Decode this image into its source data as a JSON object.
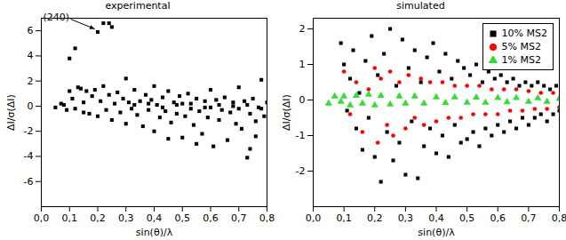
{
  "chart_data": [
    {
      "type": "scatter",
      "title": "experimental",
      "x_label": "sin(θ)/λ",
      "y_label": "ΔI/σ(ΔI)",
      "xlim": [
        0,
        0.8
      ],
      "xticks": [
        {
          "value": 0,
          "label": "0,0"
        },
        {
          "value": 0.1,
          "label": "0,1"
        },
        {
          "value": 0.2,
          "label": "0,2"
        },
        {
          "value": 0.3,
          "label": "0,3"
        },
        {
          "value": 0.4,
          "label": "0,4"
        },
        {
          "value": 0.5,
          "label": "0,5"
        },
        {
          "value": 0.6,
          "label": "0,6"
        },
        {
          "value": 0.7,
          "label": "0,7"
        },
        {
          "value": 0.8,
          "label": "0,8"
        }
      ],
      "ylim": [
        -8,
        7
      ],
      "yticks": [
        -6,
        -4,
        -2,
        0,
        2,
        4,
        6
      ],
      "series": [
        {
          "color": "#000000",
          "marker": "square",
          "x": [
            0.05,
            0.07,
            0.08,
            0.09,
            0.1,
            0.12,
            0.1,
            0.11,
            0.12,
            0.13,
            0.14,
            0.15,
            0.15,
            0.16,
            0.17,
            0.18,
            0.19,
            0.2,
            0.22,
            0.24,
            0.25,
            0.2,
            0.21,
            0.22,
            0.23,
            0.24,
            0.25,
            0.26,
            0.27,
            0.28,
            0.29,
            0.3,
            0.3,
            0.31,
            0.32,
            0.33,
            0.34,
            0.35,
            0.36,
            0.37,
            0.38,
            0.39,
            0.4,
            0.4,
            0.41,
            0.42,
            0.43,
            0.44,
            0.45,
            0.46,
            0.47,
            0.48,
            0.49,
            0.5,
            0.5,
            0.51,
            0.52,
            0.53,
            0.54,
            0.55,
            0.56,
            0.57,
            0.58,
            0.59,
            0.6,
            0.6,
            0.61,
            0.62,
            0.63,
            0.64,
            0.65,
            0.66,
            0.67,
            0.68,
            0.69,
            0.7,
            0.7,
            0.71,
            0.72,
            0.73,
            0.74,
            0.75,
            0.76,
            0.77,
            0.78,
            0.79,
            0.8,
            0.74,
            0.76,
            0.55,
            0.45,
            0.33,
            0.43,
            0.53,
            0.63,
            0.73,
            0.38,
            0.48,
            0.58,
            0.68,
            0.78
          ],
          "values": [
            -0.1,
            0.2,
            0.1,
            -0.3,
            3.8,
            4.6,
            1.2,
            0.6,
            -0.2,
            1.5,
            1.4,
            -0.5,
            0.3,
            1.2,
            -0.6,
            0.8,
            1.3,
            5.9,
            6.6,
            6.6,
            6.3,
            -0.8,
            0.4,
            1.6,
            -0.3,
            0.9,
            -1.1,
            0.2,
            1.1,
            -0.5,
            0.6,
            2.2,
            -1.4,
            0.3,
            -0.2,
            1.3,
            -0.7,
            0.4,
            -1.6,
            0.9,
            -0.3,
            0.5,
            -2.0,
            1.6,
            0.1,
            -0.9,
            0.7,
            -0.4,
            1.2,
            -1.3,
            0.3,
            -0.6,
            0.8,
            -2.5,
            0.2,
            -0.8,
            1.0,
            -0.2,
            -1.5,
            0.6,
            -0.4,
            -2.2,
            0.4,
            -0.9,
            1.3,
            -0.1,
            -3.2,
            0.5,
            -1.1,
            -0.3,
            0.7,
            -2.7,
            -0.5,
            0.3,
            -1.4,
            1.5,
            -0.2,
            -1.8,
            0.4,
            -4.1,
            -0.6,
            0.6,
            -1.2,
            -0.1,
            2.1,
            -0.8,
            0.3,
            -3.4,
            -2.4,
            -3.0,
            -2.6,
            0.1,
            -0.1,
            0.2,
            0.1,
            0.1,
            0.2,
            0.1,
            -0.1,
            0.0,
            -0.2
          ]
        }
      ],
      "annotations": [
        {
          "text": "(240)",
          "x": 0.2,
          "y": 5.9
        }
      ]
    },
    {
      "type": "scatter",
      "title": "simulated",
      "x_label": "sin(θ)/λ",
      "y_label": "ΔI/σ(ΔI)",
      "xlim": [
        0,
        0.8
      ],
      "xticks": [
        {
          "value": 0,
          "label": "0,0"
        },
        {
          "value": 0.1,
          "label": "0,1"
        },
        {
          "value": 0.2,
          "label": "0,2"
        },
        {
          "value": 0.3,
          "label": "0,3"
        },
        {
          "value": 0.4,
          "label": "0,4"
        },
        {
          "value": 0.5,
          "label": "0,5"
        },
        {
          "value": 0.6,
          "label": "0,6"
        },
        {
          "value": 0.7,
          "label": "0,7"
        },
        {
          "value": 0.8,
          "label": "0,8"
        }
      ],
      "ylim": [
        -3,
        2.3
      ],
      "yticks": [
        -2,
        -1,
        0,
        1,
        2
      ],
      "legend": "top-right",
      "series": [
        {
          "name": "10% MS2",
          "color": "#000000",
          "marker": "square",
          "x": [
            0.09,
            0.1,
            0.11,
            0.12,
            0.13,
            0.14,
            0.15,
            0.16,
            0.17,
            0.18,
            0.19,
            0.2,
            0.21,
            0.22,
            0.23,
            0.24,
            0.25,
            0.26,
            0.27,
            0.28,
            0.29,
            0.3,
            0.31,
            0.32,
            0.33,
            0.34,
            0.35,
            0.36,
            0.37,
            0.38,
            0.39,
            0.4,
            0.41,
            0.42,
            0.43,
            0.44,
            0.45,
            0.46,
            0.47,
            0.48,
            0.49,
            0.5,
            0.51,
            0.52,
            0.53,
            0.54,
            0.55,
            0.56,
            0.57,
            0.58,
            0.59,
            0.6,
            0.61,
            0.62,
            0.63,
            0.64,
            0.65,
            0.66,
            0.67,
            0.68,
            0.69,
            0.7,
            0.71,
            0.72,
            0.73,
            0.74,
            0.75,
            0.76,
            0.77,
            0.78,
            0.79,
            0.8
          ],
          "values": [
            1.6,
            1.0,
            -0.3,
            0.6,
            1.4,
            -0.8,
            0.2,
            -1.4,
            1.1,
            -0.5,
            1.8,
            -1.6,
            0.7,
            -2.3,
            1.3,
            -0.9,
            2.0,
            -1.7,
            0.4,
            -1.2,
            1.7,
            -2.1,
            0.9,
            -0.6,
            1.4,
            -2.2,
            0.5,
            -1.3,
            1.2,
            -0.8,
            1.6,
            -1.5,
            0.8,
            -1.0,
            1.3,
            -1.6,
            0.6,
            -0.7,
            1.1,
            -1.2,
            0.9,
            -1.1,
            0.7,
            -0.9,
            1.0,
            -1.3,
            0.5,
            -0.8,
            0.8,
            -1.0,
            0.6,
            -0.7,
            0.7,
            -0.9,
            0.5,
            -0.6,
            0.6,
            -0.8,
            0.4,
            -0.5,
            0.5,
            -0.7,
            0.4,
            -0.5,
            0.5,
            -0.4,
            0.4,
            -0.6,
            0.3,
            -0.4,
            0.4,
            -0.3
          ]
        },
        {
          "name": "5% MS2",
          "color": "#ff0000",
          "marker": "circle",
          "x": [
            0.1,
            0.12,
            0.14,
            0.16,
            0.18,
            0.2,
            0.21,
            0.22,
            0.24,
            0.25,
            0.26,
            0.28,
            0.3,
            0.31,
            0.33,
            0.35,
            0.36,
            0.38,
            0.4,
            0.42,
            0.44,
            0.46,
            0.48,
            0.5,
            0.52,
            0.54,
            0.56,
            0.58,
            0.6,
            0.62,
            0.64,
            0.66,
            0.68,
            0.7,
            0.72,
            0.74,
            0.76,
            0.78,
            0.8
          ],
          "values": [
            0.8,
            -0.4,
            0.5,
            -0.9,
            0.3,
            0.9,
            -1.2,
            0.6,
            -0.7,
            0.8,
            -1.0,
            0.5,
            -0.8,
            0.7,
            -0.5,
            0.6,
            -0.7,
            0.5,
            -0.6,
            0.5,
            -0.5,
            0.4,
            -0.5,
            0.4,
            -0.4,
            0.4,
            -0.4,
            0.3,
            -0.4,
            0.3,
            -0.3,
            0.3,
            -0.3,
            0.25,
            -0.25,
            0.2,
            -0.25,
            0.2,
            -0.2
          ]
        },
        {
          "name": "1% MS2",
          "color": "#33dd33",
          "marker": "triangle",
          "x": [
            0.05,
            0.07,
            0.09,
            0.1,
            0.12,
            0.14,
            0.16,
            0.18,
            0.2,
            0.22,
            0.25,
            0.28,
            0.3,
            0.33,
            0.36,
            0.4,
            0.43,
            0.46,
            0.5,
            0.53,
            0.56,
            0.6,
            0.63,
            0.66,
            0.7,
            0.73,
            0.76,
            0.8
          ],
          "values": [
            -0.1,
            0.1,
            -0.05,
            0.1,
            -0.15,
            0.12,
            -0.1,
            0.15,
            -0.15,
            0.12,
            -0.12,
            0.1,
            -0.1,
            0.1,
            -0.1,
            0.08,
            -0.08,
            0.08,
            -0.07,
            0.07,
            -0.07,
            0.06,
            -0.06,
            0.06,
            -0.05,
            0.05,
            -0.05,
            0.04
          ]
        }
      ]
    }
  ]
}
